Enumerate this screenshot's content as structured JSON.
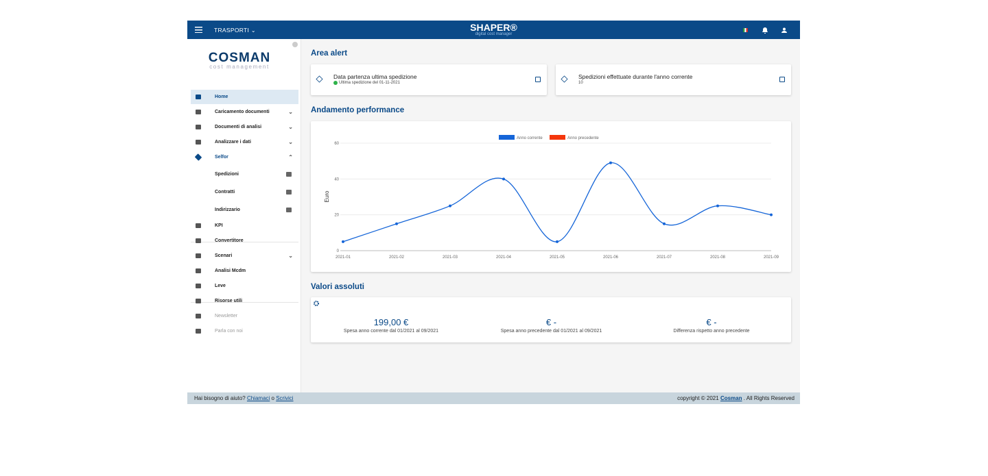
{
  "topbar": {
    "menu": "TRASPORTI",
    "brand": "SHAPER®",
    "tagline": "digital cost manager"
  },
  "sidebar": {
    "logo": "COSMAN",
    "logo_sub": "cost management",
    "items": [
      {
        "label": "Home"
      },
      {
        "label": "Caricamento documenti"
      },
      {
        "label": "Documenti di analisi"
      },
      {
        "label": "Analizzare i dati"
      },
      {
        "label": "Selfor",
        "children": [
          {
            "label": "Spedizioni"
          },
          {
            "label": "Contratti"
          },
          {
            "label": "Indirizzario"
          }
        ]
      },
      {
        "label": "KPI"
      },
      {
        "label": "Convertitore"
      },
      {
        "label": "Scenari"
      },
      {
        "label": "Analisi Mcdm"
      },
      {
        "label": "Leve"
      },
      {
        "label": "Risorse utili"
      },
      {
        "label": "Newsletter"
      },
      {
        "label": "Parla con noi"
      }
    ]
  },
  "alerts": {
    "title": "Area alert",
    "cards": [
      {
        "title": "Data partenza ultima spedizione",
        "subtitle": "Ultima spedizione del 01-11-2021"
      },
      {
        "title": "Spedizioni effettuate durante l'anno corrente",
        "subtitle": "10"
      }
    ]
  },
  "performance": {
    "title": "Andamento performance"
  },
  "chart_data": {
    "type": "line",
    "y_label": "Euro",
    "categories": [
      "2021-01",
      "2021-02",
      "2021-03",
      "2021-04",
      "2021-05",
      "2021-06",
      "2021-07",
      "2021-08",
      "2021-09"
    ],
    "series": [
      {
        "name": "Anno corrente",
        "color": "#1565d8",
        "values": [
          5,
          15,
          25,
          40,
          5,
          49,
          15,
          25,
          20
        ]
      },
      {
        "name": "Anno precedente",
        "color": "#f4360c",
        "values": [
          null,
          null,
          null,
          null,
          null,
          null,
          null,
          null,
          null
        ]
      }
    ],
    "ylim": [
      0,
      60
    ],
    "yticks": [
      0,
      20,
      40,
      60
    ],
    "grid": true,
    "legend": "top"
  },
  "absolute": {
    "title": "Valori assoluti",
    "cards": [
      {
        "value": "199,00 €",
        "label": "Spesa anno corrente dal 01/2021 al 09/2021"
      },
      {
        "value": "€ -",
        "label": "Spesa anno precedente dal 01/2021 al 09/2021"
      },
      {
        "value": "€ -",
        "label": "Differenza rispetto anno precedente"
      }
    ]
  },
  "footer": {
    "help": "Hai bisogno di aiuto?",
    "call": "Chiamaci",
    "or": "o",
    "write": "Scrivici",
    "copyright": "copyright © 2021",
    "company": "Cosman",
    "rights": ". All Rights Reserved"
  }
}
